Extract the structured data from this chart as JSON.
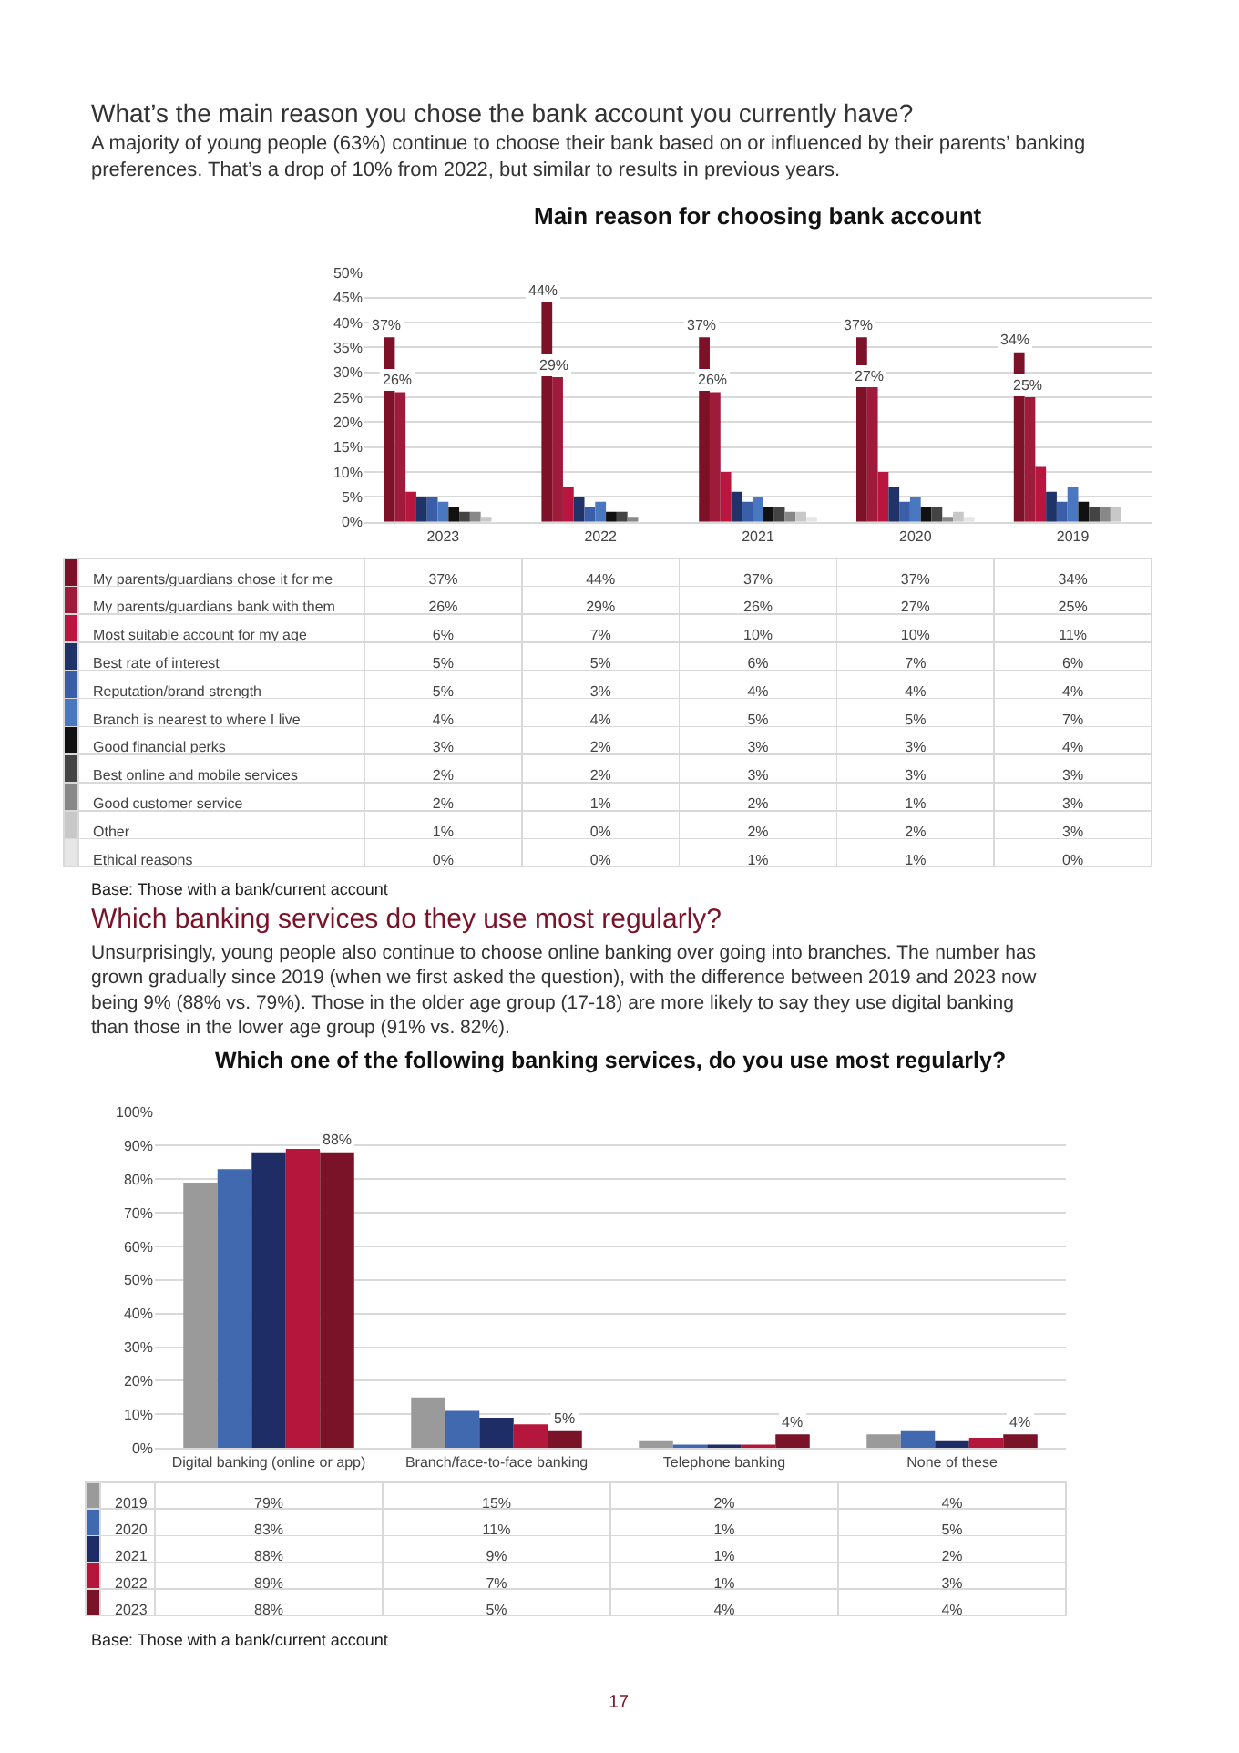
{
  "chart_data": [
    {
      "type": "bar",
      "title": "Main reason for choosing bank account",
      "categories": [
        "2023",
        "2022",
        "2021",
        "2020",
        "2019"
      ],
      "ylim": [
        0,
        50
      ],
      "yticks": [
        {
          "value": 0,
          "label": "0%"
        },
        {
          "value": 5,
          "label": "5%"
        },
        {
          "value": 10,
          "label": "10%"
        },
        {
          "value": 15,
          "label": "15%"
        },
        {
          "value": 20,
          "label": "20%"
        },
        {
          "value": 25,
          "label": "25%"
        },
        {
          "value": 30,
          "label": "30%"
        },
        {
          "value": 35,
          "label": "35%"
        },
        {
          "value": 40,
          "label": "40%"
        },
        {
          "value": 45,
          "label": "45%"
        },
        {
          "value": 50,
          "label": "50%"
        }
      ],
      "grid": "y",
      "legend": "bottom",
      "series": [
        {
          "name": "My parents/guardians chose it for me",
          "color": "#7d1128",
          "values": [
            37,
            44,
            37,
            37,
            34
          ],
          "value_labels": [
            "37%",
            "44%",
            "37%",
            "37%",
            "34%"
          ]
        },
        {
          "name": "My parents/guardians bank with them",
          "color": "#9e1b3c",
          "values": [
            26,
            29,
            26,
            27,
            25
          ],
          "value_labels": [
            "26%",
            "29%",
            "26%",
            "27%",
            "25%"
          ]
        },
        {
          "name": "Most suitable account for my age",
          "color": "#b8163f",
          "values": [
            6,
            7,
            10,
            10,
            11
          ],
          "value_labels": [
            "6%",
            "7%",
            "10%",
            "10%",
            "11%"
          ]
        },
        {
          "name": "Best rate of interest",
          "color": "#1f3368",
          "values": [
            5,
            5,
            6,
            7,
            6
          ],
          "value_labels": [
            "5%",
            "5%",
            "6%",
            "7%",
            "6%"
          ]
        },
        {
          "name": "Reputation/brand strength",
          "color": "#3a5ea8",
          "values": [
            5,
            3,
            4,
            4,
            4
          ],
          "value_labels": [
            "5%",
            "3%",
            "4%",
            "4%",
            "4%"
          ]
        },
        {
          "name": "Branch is nearest to where I live",
          "color": "#4a78c0",
          "values": [
            4,
            4,
            5,
            5,
            7
          ],
          "value_labels": [
            "4%",
            "4%",
            "5%",
            "5%",
            "7%"
          ]
        },
        {
          "name": "Good financial perks",
          "color": "#111111",
          "values": [
            3,
            2,
            3,
            3,
            4
          ],
          "value_labels": [
            "3%",
            "2%",
            "3%",
            "3%",
            "4%"
          ]
        },
        {
          "name": "Best online and mobile services",
          "color": "#444444",
          "values": [
            2,
            2,
            3,
            3,
            3
          ],
          "value_labels": [
            "2%",
            "2%",
            "3%",
            "3%",
            "3%"
          ]
        },
        {
          "name": "Good customer service",
          "color": "#888888",
          "values": [
            2,
            1,
            2,
            1,
            3
          ],
          "value_labels": [
            "2%",
            "1%",
            "2%",
            "1%",
            "3%"
          ]
        },
        {
          "name": "Other",
          "color": "#c8c8c8",
          "values": [
            1,
            0,
            2,
            2,
            3
          ],
          "value_labels": [
            "1%",
            "0%",
            "2%",
            "2%",
            "3%"
          ]
        },
        {
          "name": "Ethical reasons",
          "color": "#e6e6e6",
          "values": [
            0,
            0,
            1,
            1,
            0
          ],
          "value_labels": [
            "0%",
            "0%",
            "1%",
            "1%",
            "0%"
          ]
        }
      ],
      "annotations": [
        "What’s the main reason you chose the bank account you currently have?",
        "A majority of young people (63%) continue to choose their bank based on or influenced by their parents’ banking preferences. That’s a drop of 10% from 2022, but similar to results in previous years.",
        "Base: Those with a bank/current account",
        "37%",
        "26%",
        "44%",
        "29%",
        "37%",
        "26%",
        "37%",
        "27%",
        "34%",
        "25%"
      ]
    },
    {
      "type": "bar",
      "title": "Which one of the following banking services, do you use most regularly?",
      "categories": [
        "Digital banking (online or app)",
        "Branch/face-to-face banking",
        "Telephone banking",
        "None of these"
      ],
      "ylim": [
        0,
        100
      ],
      "yticks": [
        {
          "value": 0,
          "label": "0%"
        },
        {
          "value": 10,
          "label": "10%"
        },
        {
          "value": 20,
          "label": "20%"
        },
        {
          "value": 30,
          "label": "30%"
        },
        {
          "value": 40,
          "label": "40%"
        },
        {
          "value": 50,
          "label": "50%"
        },
        {
          "value": 60,
          "label": "60%"
        },
        {
          "value": 70,
          "label": "70%"
        },
        {
          "value": 80,
          "label": "80%"
        },
        {
          "value": 90,
          "label": "90%"
        },
        {
          "value": 100,
          "label": "100%"
        }
      ],
      "grid": "y",
      "legend": "bottom",
      "series": [
        {
          "name": "2019",
          "color": "#9a9a9a",
          "values": [
            79,
            15,
            2,
            4
          ],
          "value_labels": [
            "79%",
            "15%",
            "2%",
            "4%"
          ]
        },
        {
          "name": "2020",
          "color": "#4169b0",
          "values": [
            83,
            11,
            1,
            5
          ],
          "value_labels": [
            "83%",
            "11%",
            "1%",
            "5%"
          ]
        },
        {
          "name": "2021",
          "color": "#1f2d66",
          "values": [
            88,
            9,
            1,
            2
          ],
          "value_labels": [
            "88%",
            "9%",
            "1%",
            "2%"
          ]
        },
        {
          "name": "2022",
          "color": "#b5173c",
          "values": [
            89,
            7,
            1,
            3
          ],
          "value_labels": [
            "89%",
            "7%",
            "1%",
            "3%"
          ]
        },
        {
          "name": "2023",
          "color": "#7a1228",
          "values": [
            88,
            5,
            4,
            4
          ],
          "value_labels": [
            "88%",
            "5%",
            "4%",
            "4%"
          ]
        }
      ],
      "annotations": [
        "Which banking services do they use most regularly?",
        "Unsurprisingly, young people also continue to choose online banking over going into branches. The number has grown gradually since 2019 (when we first asked the question), with the difference between 2019 and 2023 now being 9% (88% vs. 79%). Those in the older age group (17-18) are more likely to say they use digital banking than those in the lower age group (91% vs. 82%).",
        "Base: Those with a bank/current account",
        "17",
        "88%",
        "5%",
        "4%",
        "4%"
      ]
    }
  ]
}
